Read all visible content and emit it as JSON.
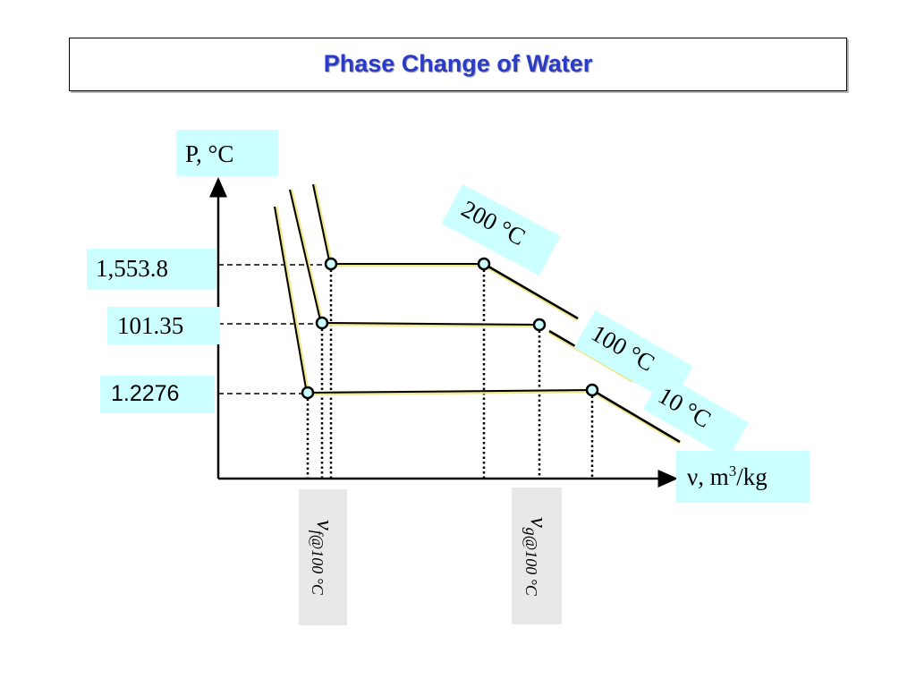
{
  "slide": {
    "title": "Phase Change of Water"
  },
  "axes": {
    "y_label": "P, °C",
    "x_label_prefix": "ν, m",
    "x_label_sup": "3",
    "x_label_suffix": "/kg"
  },
  "pressures": {
    "high": "1,553.8",
    "mid": "101.35",
    "low": "1.2276"
  },
  "isotherms": {
    "t200": "200 °C",
    "t100": "100 °C",
    "t10": "10 °C"
  },
  "specific_volumes": {
    "vf_symbol": "v",
    "vf_sub": "f@100 °C",
    "vg_symbol": "v",
    "vg_sub": "g@100 °C"
  },
  "colors": {
    "title": "#2a3bc8",
    "label_bg": "#ccffff",
    "sub_label_bg": "#e8e8e8",
    "line_highlight": "#f0e68c",
    "point_fill": "#ccffff"
  }
}
